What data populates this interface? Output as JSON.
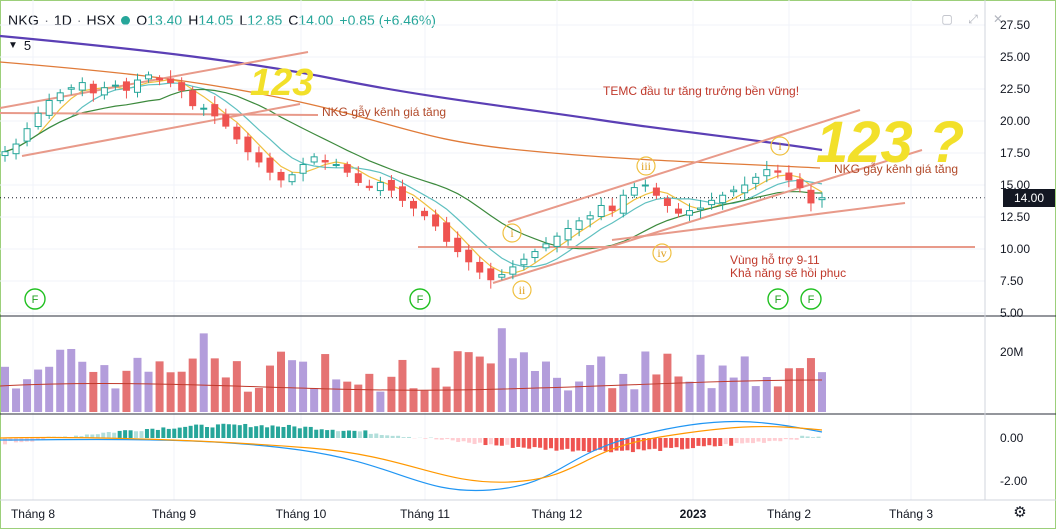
{
  "header": {
    "symbol": "NKG",
    "interval": "1D",
    "exchange": "HSX",
    "open_label": "O",
    "open": "13.40",
    "high_label": "H",
    "high": "14.05",
    "low_label": "L",
    "low": "12.85",
    "close_label": "C",
    "close": "14.00",
    "change": "+0.85 (+6.46%)"
  },
  "indicator_badge": {
    "count": "5"
  },
  "icons": [
    "chevron-down-icon",
    "square-icon",
    "fullscreen-icon",
    "close-icon",
    "gear-icon"
  ],
  "price_axis": {
    "ticks": [
      "27.50",
      "25.00",
      "22.50",
      "20.00",
      "17.50",
      "15.00",
      "12.50",
      "10.00",
      "7.50",
      "5.00"
    ],
    "current_price": "14.00"
  },
  "volume_axis": {
    "ticks": [
      "20M"
    ]
  },
  "macd_axis": {
    "ticks": [
      "0.00",
      "-2.00"
    ]
  },
  "time_axis": {
    "ticks": [
      "Tháng 8",
      "Tháng 9",
      "Tháng 10",
      "Tháng 11",
      "Tháng 12",
      "2023",
      "Tháng 2",
      "Tháng 3"
    ]
  },
  "annotations": {
    "break_channel_1": "NKG gẫy kênh giá tăng",
    "temc": "TEMC đầu tư tăng trưởng bền vững!",
    "break_channel_2": "NKG gẫy kênh giá tăng",
    "support_line1": "Vùng hỗ trợ 9-11",
    "support_line2": "Khả năng sẽ hồi phục",
    "wave_i": "i",
    "wave_ii": "ii",
    "wave_iii": "iii",
    "wave_iv": "iv",
    "wave_v": "i",
    "big_digits_1": "123",
    "big_digits_2": "123 ?",
    "f_marker": "F"
  },
  "colors": {
    "up": "#26a69a",
    "down": "#ef5350",
    "ma_purple": "#5b3fb5",
    "ma_orange": "#e07b39",
    "ma_green": "#3d8a3d",
    "ma_cyan": "#5fc0c0",
    "ma_yellow": "#f0c040",
    "trendline": "#e89a8a",
    "vol_up": "#b39ddb",
    "vol_down": "#e57373",
    "macd_line": "#2196f3",
    "signal_line": "#ff9800"
  },
  "chart_data": {
    "type": "candlestick",
    "ylim": [
      5,
      28
    ],
    "x": [
      "Tháng 8",
      "Tháng 9",
      "Tháng 10",
      "Tháng 11",
      "Tháng 12",
      "2023",
      "Tháng 2",
      "Tháng 3"
    ],
    "close_path": [
      17.6,
      18.2,
      19.4,
      20.6,
      21.6,
      22.2,
      22.6,
      23.0,
      22.2,
      22.6,
      22.8,
      22.4,
      23.2,
      23.6,
      23.2,
      23.0,
      22.4,
      21.2,
      21.0,
      20.4,
      19.6,
      18.6,
      17.6,
      16.8,
      16.0,
      15.4,
      15.8,
      16.6,
      17.2,
      16.8,
      16.6,
      16.0,
      15.2,
      14.8,
      15.2,
      14.6,
      13.8,
      13.2,
      12.6,
      11.8,
      10.6,
      9.8,
      9.0,
      8.2,
      7.6,
      8.0,
      8.6,
      9.2,
      9.8,
      10.4,
      11.0,
      11.6,
      12.2,
      12.6,
      13.4,
      13.0,
      14.2,
      14.8,
      15.0,
      14.2,
      13.4,
      12.8,
      13.0,
      13.2,
      13.8,
      14.2,
      14.6,
      15.0,
      15.6,
      16.2,
      16.0,
      15.4,
      14.8,
      13.6,
      14.0
    ],
    "current": 14.0
  }
}
